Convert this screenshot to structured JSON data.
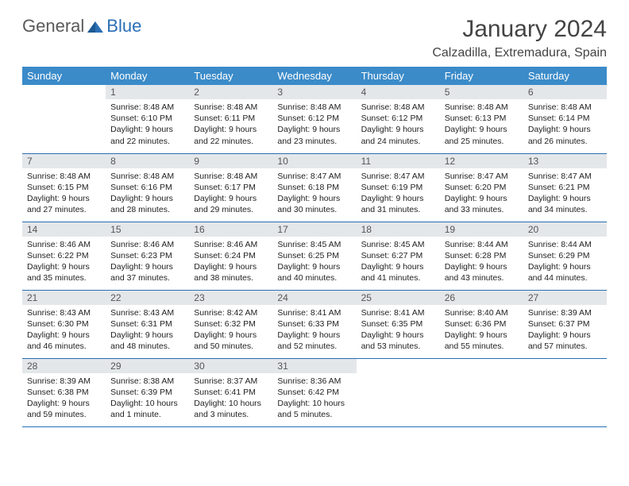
{
  "logo": {
    "text1": "General",
    "text2": "Blue"
  },
  "title": "January 2024",
  "location": "Calzadilla, Extremadura, Spain",
  "styling": {
    "header_bg": "#3b8bc9",
    "header_text_color": "#ffffff",
    "daynum_bg": "#e4e7ea",
    "border_color": "#2a6fb5",
    "body_text_color": "#222222",
    "title_color": "#444444",
    "logo_blue": "#2a6fb5",
    "logo_gray": "#5a5a5a",
    "font_family": "Arial",
    "title_fontsize": 30,
    "location_fontsize": 16,
    "header_fontsize": 13,
    "cell_fontsize": 10.5
  },
  "weekdays": [
    "Sunday",
    "Monday",
    "Tuesday",
    "Wednesday",
    "Thursday",
    "Friday",
    "Saturday"
  ],
  "weeks": [
    [
      null,
      {
        "n": "1",
        "sr": "Sunrise: 8:48 AM",
        "ss": "Sunset: 6:10 PM",
        "dl": "Daylight: 9 hours and 22 minutes."
      },
      {
        "n": "2",
        "sr": "Sunrise: 8:48 AM",
        "ss": "Sunset: 6:11 PM",
        "dl": "Daylight: 9 hours and 22 minutes."
      },
      {
        "n": "3",
        "sr": "Sunrise: 8:48 AM",
        "ss": "Sunset: 6:12 PM",
        "dl": "Daylight: 9 hours and 23 minutes."
      },
      {
        "n": "4",
        "sr": "Sunrise: 8:48 AM",
        "ss": "Sunset: 6:12 PM",
        "dl": "Daylight: 9 hours and 24 minutes."
      },
      {
        "n": "5",
        "sr": "Sunrise: 8:48 AM",
        "ss": "Sunset: 6:13 PM",
        "dl": "Daylight: 9 hours and 25 minutes."
      },
      {
        "n": "6",
        "sr": "Sunrise: 8:48 AM",
        "ss": "Sunset: 6:14 PM",
        "dl": "Daylight: 9 hours and 26 minutes."
      }
    ],
    [
      {
        "n": "7",
        "sr": "Sunrise: 8:48 AM",
        "ss": "Sunset: 6:15 PM",
        "dl": "Daylight: 9 hours and 27 minutes."
      },
      {
        "n": "8",
        "sr": "Sunrise: 8:48 AM",
        "ss": "Sunset: 6:16 PM",
        "dl": "Daylight: 9 hours and 28 minutes."
      },
      {
        "n": "9",
        "sr": "Sunrise: 8:48 AM",
        "ss": "Sunset: 6:17 PM",
        "dl": "Daylight: 9 hours and 29 minutes."
      },
      {
        "n": "10",
        "sr": "Sunrise: 8:47 AM",
        "ss": "Sunset: 6:18 PM",
        "dl": "Daylight: 9 hours and 30 minutes."
      },
      {
        "n": "11",
        "sr": "Sunrise: 8:47 AM",
        "ss": "Sunset: 6:19 PM",
        "dl": "Daylight: 9 hours and 31 minutes."
      },
      {
        "n": "12",
        "sr": "Sunrise: 8:47 AM",
        "ss": "Sunset: 6:20 PM",
        "dl": "Daylight: 9 hours and 33 minutes."
      },
      {
        "n": "13",
        "sr": "Sunrise: 8:47 AM",
        "ss": "Sunset: 6:21 PM",
        "dl": "Daylight: 9 hours and 34 minutes."
      }
    ],
    [
      {
        "n": "14",
        "sr": "Sunrise: 8:46 AM",
        "ss": "Sunset: 6:22 PM",
        "dl": "Daylight: 9 hours and 35 minutes."
      },
      {
        "n": "15",
        "sr": "Sunrise: 8:46 AM",
        "ss": "Sunset: 6:23 PM",
        "dl": "Daylight: 9 hours and 37 minutes."
      },
      {
        "n": "16",
        "sr": "Sunrise: 8:46 AM",
        "ss": "Sunset: 6:24 PM",
        "dl": "Daylight: 9 hours and 38 minutes."
      },
      {
        "n": "17",
        "sr": "Sunrise: 8:45 AM",
        "ss": "Sunset: 6:25 PM",
        "dl": "Daylight: 9 hours and 40 minutes."
      },
      {
        "n": "18",
        "sr": "Sunrise: 8:45 AM",
        "ss": "Sunset: 6:27 PM",
        "dl": "Daylight: 9 hours and 41 minutes."
      },
      {
        "n": "19",
        "sr": "Sunrise: 8:44 AM",
        "ss": "Sunset: 6:28 PM",
        "dl": "Daylight: 9 hours and 43 minutes."
      },
      {
        "n": "20",
        "sr": "Sunrise: 8:44 AM",
        "ss": "Sunset: 6:29 PM",
        "dl": "Daylight: 9 hours and 44 minutes."
      }
    ],
    [
      {
        "n": "21",
        "sr": "Sunrise: 8:43 AM",
        "ss": "Sunset: 6:30 PM",
        "dl": "Daylight: 9 hours and 46 minutes."
      },
      {
        "n": "22",
        "sr": "Sunrise: 8:43 AM",
        "ss": "Sunset: 6:31 PM",
        "dl": "Daylight: 9 hours and 48 minutes."
      },
      {
        "n": "23",
        "sr": "Sunrise: 8:42 AM",
        "ss": "Sunset: 6:32 PM",
        "dl": "Daylight: 9 hours and 50 minutes."
      },
      {
        "n": "24",
        "sr": "Sunrise: 8:41 AM",
        "ss": "Sunset: 6:33 PM",
        "dl": "Daylight: 9 hours and 52 minutes."
      },
      {
        "n": "25",
        "sr": "Sunrise: 8:41 AM",
        "ss": "Sunset: 6:35 PM",
        "dl": "Daylight: 9 hours and 53 minutes."
      },
      {
        "n": "26",
        "sr": "Sunrise: 8:40 AM",
        "ss": "Sunset: 6:36 PM",
        "dl": "Daylight: 9 hours and 55 minutes."
      },
      {
        "n": "27",
        "sr": "Sunrise: 8:39 AM",
        "ss": "Sunset: 6:37 PM",
        "dl": "Daylight: 9 hours and 57 minutes."
      }
    ],
    [
      {
        "n": "28",
        "sr": "Sunrise: 8:39 AM",
        "ss": "Sunset: 6:38 PM",
        "dl": "Daylight: 9 hours and 59 minutes."
      },
      {
        "n": "29",
        "sr": "Sunrise: 8:38 AM",
        "ss": "Sunset: 6:39 PM",
        "dl": "Daylight: 10 hours and 1 minute."
      },
      {
        "n": "30",
        "sr": "Sunrise: 8:37 AM",
        "ss": "Sunset: 6:41 PM",
        "dl": "Daylight: 10 hours and 3 minutes."
      },
      {
        "n": "31",
        "sr": "Sunrise: 8:36 AM",
        "ss": "Sunset: 6:42 PM",
        "dl": "Daylight: 10 hours and 5 minutes."
      },
      null,
      null,
      null
    ]
  ]
}
